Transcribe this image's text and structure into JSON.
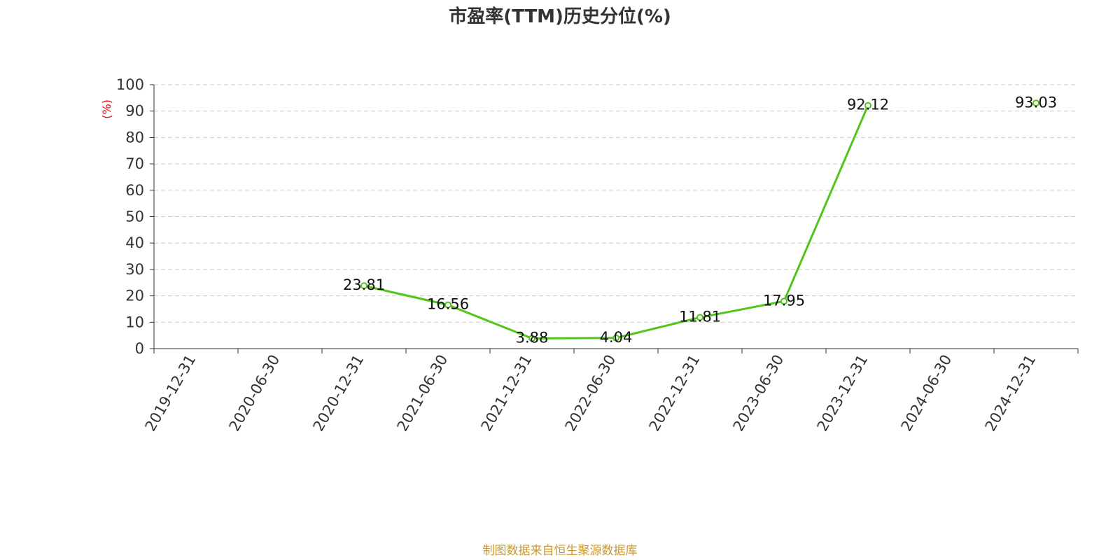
{
  "chart_data": {
    "type": "line",
    "title": "市盈率(TTM)历史分位(%)",
    "y_label": "(%)",
    "source": "制图数据来自恒生聚源数据库",
    "categories": [
      "2019-12-31",
      "2020-06-30",
      "2020-12-31",
      "2021-06-30",
      "2021-12-31",
      "2022-06-30",
      "2022-12-31",
      "2023-06-30",
      "2023-12-31",
      "2024-06-30",
      "2024-12-31"
    ],
    "series": [
      {
        "name": "市盈率(TTM)历史分位",
        "color": "#52c41a",
        "values": [
          null,
          null,
          23.81,
          16.56,
          3.88,
          4.04,
          11.81,
          17.95,
          92.12,
          null,
          93.03
        ]
      }
    ],
    "ylim": [
      0,
      100
    ],
    "yticks": [
      0,
      10,
      20,
      30,
      40,
      50,
      60,
      70,
      80,
      90,
      100
    ],
    "grid": true
  }
}
